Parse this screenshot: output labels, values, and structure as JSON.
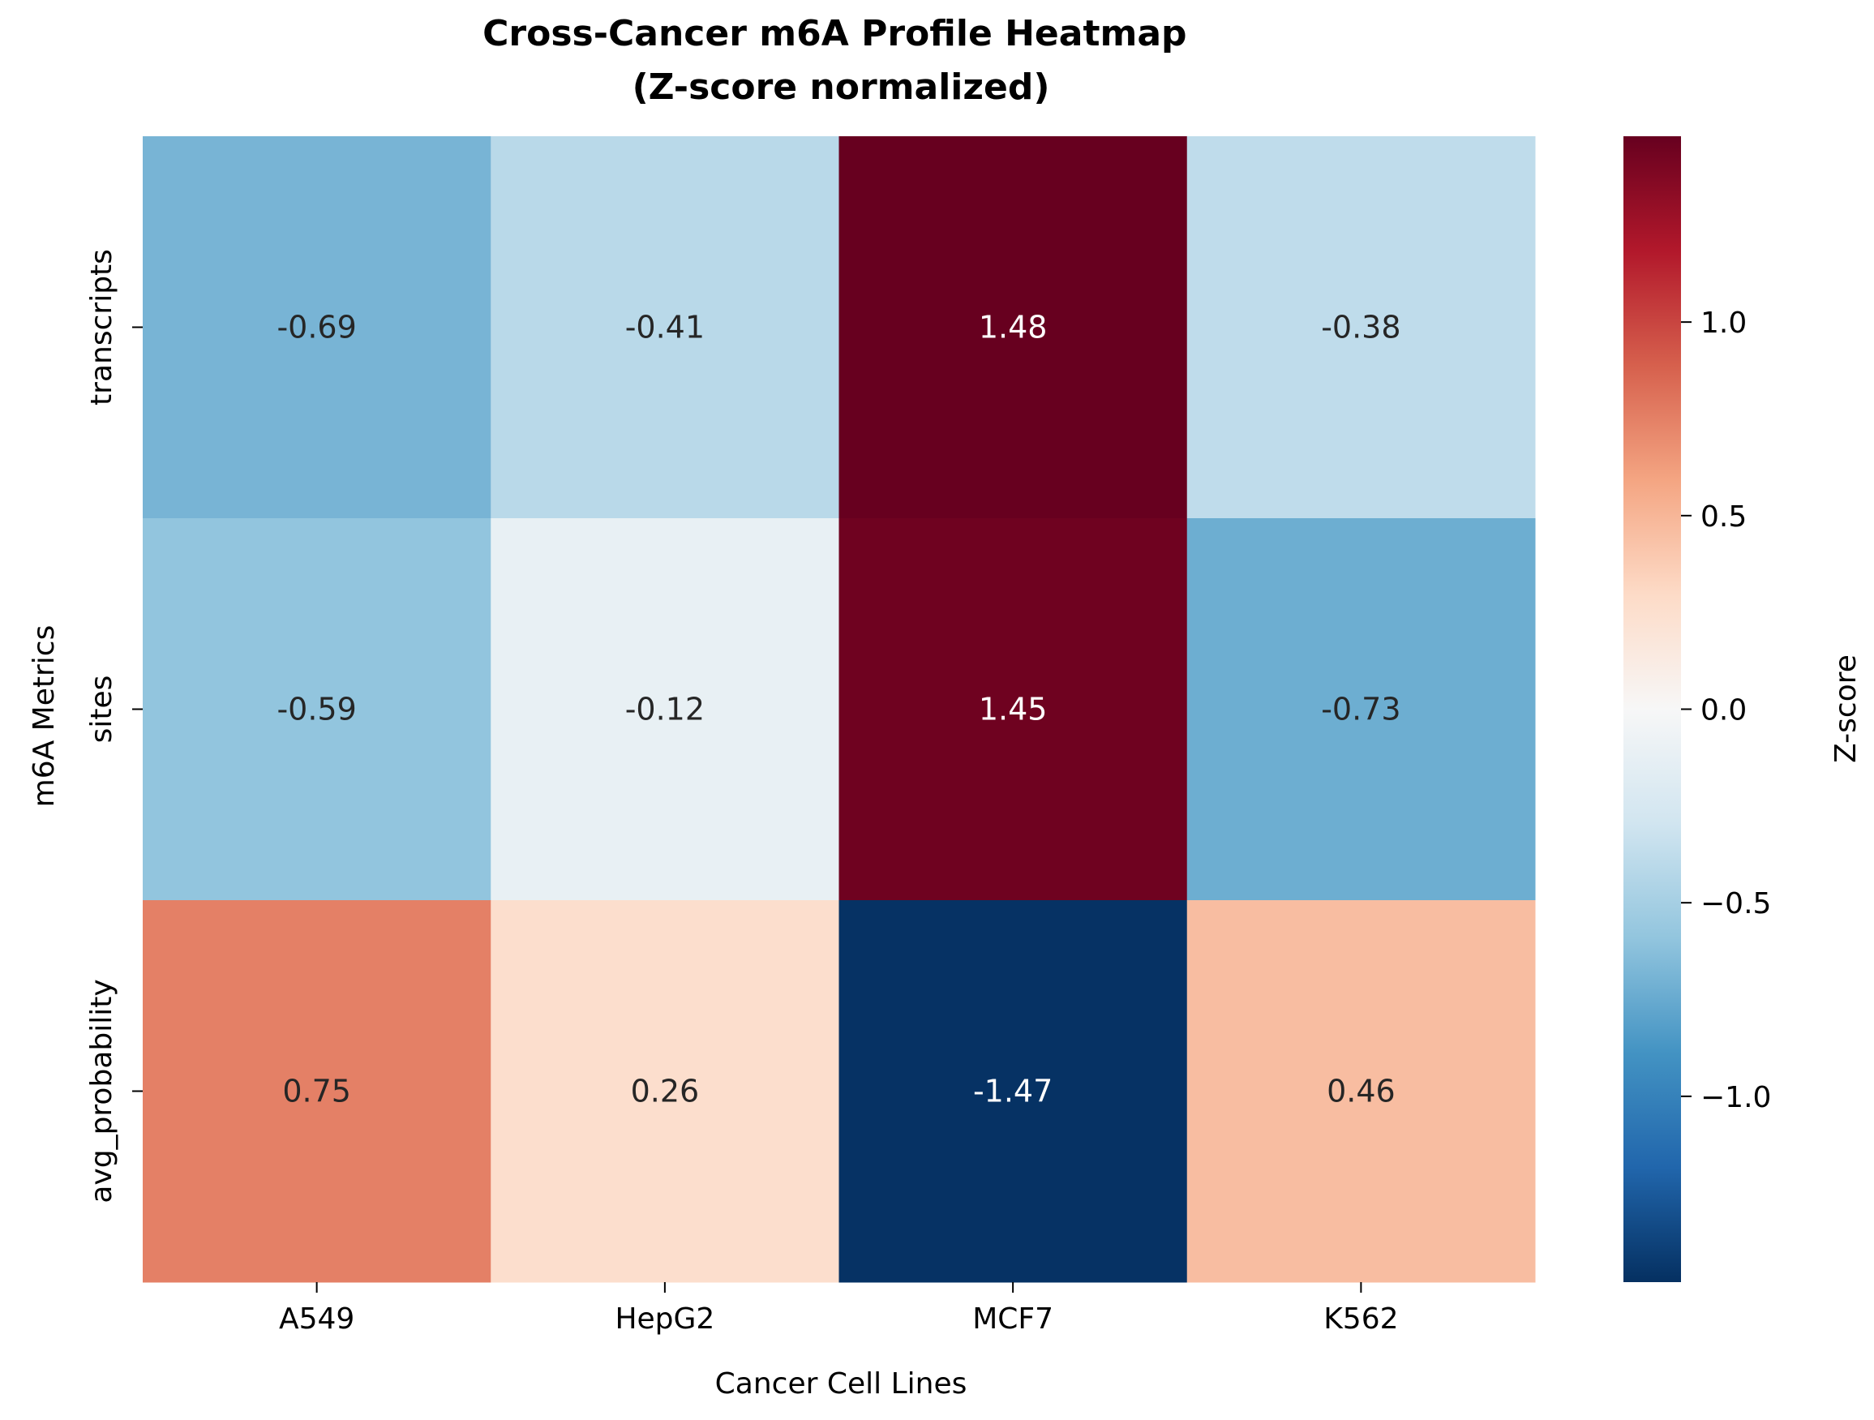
{
  "chart_data": {
    "type": "heatmap",
    "title": "Cross-Cancer m6A Profile Heatmap\n(Z-score normalized)",
    "xlabel": "Cancer Cell Lines",
    "ylabel": "m6A Metrics",
    "x_categories": [
      "A549",
      "HepG2",
      "MCF7",
      "K562"
    ],
    "y_categories": [
      "transcripts",
      "sites",
      "avg_probability"
    ],
    "values": [
      [
        -0.69,
        -0.41,
        1.48,
        -0.38
      ],
      [
        -0.59,
        -0.12,
        1.45,
        -0.73
      ],
      [
        0.75,
        0.26,
        -1.47,
        0.46
      ]
    ],
    "value_format": "2 decimals",
    "colormap": "RdBu_r",
    "colorbar": {
      "label": "Z-score",
      "range": [
        -1.48,
        1.48
      ],
      "ticks": [
        1.0,
        0.5,
        0.0,
        -0.5,
        -1.0
      ],
      "tick_labels": [
        "1.0",
        "0.5",
        "0.0",
        "−0.5",
        "−1.0"
      ]
    },
    "grid": false,
    "legend": "colorbar-right"
  }
}
